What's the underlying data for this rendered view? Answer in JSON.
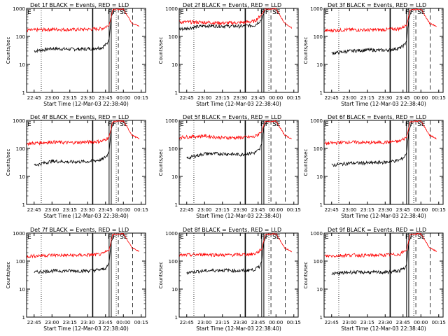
{
  "colors": {
    "events": "#000000",
    "lld": "#ff0000",
    "axis": "#000000"
  },
  "chart_data": [
    {
      "type": "line",
      "title": "Det 1f BLACK = Events, RED = LLD",
      "xlabel": "Start Time (12-Mar-03 22:38:40)",
      "ylabel": "Counts/sec",
      "x_ticks": [
        "22:45",
        "23:00",
        "23:15",
        "23:30",
        "23:45",
        "00:00",
        "00:15"
      ],
      "y_ticks": [
        "1",
        "10",
        "100",
        "1000"
      ],
      "yscale": "log",
      "ylim": [
        1,
        1000
      ],
      "xlim": [
        "22:38:40",
        "00:18:40"
      ],
      "markers": [
        "F",
        "F",
        "SE"
      ],
      "series": [
        {
          "name": "Events",
          "values": [
            [
              22.75,
              30
            ],
            [
              23.0,
              37
            ],
            [
              23.25,
              35
            ],
            [
              23.5,
              36
            ],
            [
              23.7,
              40
            ],
            [
              23.77,
              55
            ],
            [
              23.8,
              80
            ],
            [
              23.83,
              500
            ],
            [
              23.87,
              900
            ]
          ]
        },
        {
          "name": "LLD",
          "values": [
            [
              22.65,
              165
            ],
            [
              23.0,
              180
            ],
            [
              23.25,
              175
            ],
            [
              23.5,
              180
            ],
            [
              23.7,
              190
            ],
            [
              23.8,
              250
            ],
            [
              23.85,
              900
            ],
            [
              24.0,
              950
            ],
            [
              24.12,
              300
            ],
            [
              24.22,
              230
            ]
          ]
        }
      ]
    },
    {
      "type": "line",
      "title": "Det 2f BLACK = Events, RED = LLD",
      "xlabel": "Start Time (12-Mar-03 22:38:40)",
      "ylabel": "Counts/sec",
      "x_ticks": [
        "22:45",
        "23:00",
        "23:15",
        "23:30",
        "23:45",
        "00:00",
        "00:15"
      ],
      "y_ticks": [
        "1",
        "10",
        "100",
        "1000"
      ],
      "yscale": "log",
      "ylim": [
        1,
        1000
      ],
      "xlim": [
        "22:38:40",
        "00:18:40"
      ],
      "markers": [
        "F",
        "F",
        "SE"
      ],
      "series": [
        {
          "name": "Events",
          "values": [
            [
              22.65,
              180
            ],
            [
              23.0,
              240
            ],
            [
              23.25,
              235
            ],
            [
              23.5,
              230
            ],
            [
              23.7,
              250
            ],
            [
              23.8,
              400
            ],
            [
              23.85,
              900
            ]
          ]
        },
        {
          "name": "LLD",
          "values": [
            [
              22.65,
              330
            ],
            [
              23.0,
              320
            ],
            [
              23.25,
              300
            ],
            [
              23.5,
              310
            ],
            [
              23.7,
              350
            ],
            [
              23.8,
              600
            ],
            [
              23.85,
              950
            ],
            [
              24.0,
              960
            ],
            [
              24.12,
              300
            ],
            [
              24.22,
              200
            ]
          ]
        }
      ]
    },
    {
      "type": "line",
      "title": "Det 3f BLACK = Events, RED = LLD",
      "xlabel": "Start Time (12-Mar-03 22:38:40)",
      "ylabel": "Counts/sec",
      "x_ticks": [
        "22:45",
        "23:00",
        "23:15",
        "23:30",
        "23:45",
        "00:00",
        "00:15"
      ],
      "y_ticks": [
        "1",
        "10",
        "100",
        "1000"
      ],
      "yscale": "log",
      "ylim": [
        1,
        1000
      ],
      "xlim": [
        "22:38:40",
        "00:18:40"
      ],
      "markers": [
        "F",
        "F",
        "SE"
      ],
      "series": [
        {
          "name": "Events",
          "values": [
            [
              22.75,
              25
            ],
            [
              23.0,
              30
            ],
            [
              23.25,
              33
            ],
            [
              23.5,
              32
            ],
            [
              23.7,
              38
            ],
            [
              23.77,
              50
            ],
            [
              23.8,
              70
            ],
            [
              23.83,
              400
            ],
            [
              23.87,
              900
            ]
          ]
        },
        {
          "name": "LLD",
          "values": [
            [
              22.65,
              160
            ],
            [
              23.0,
              175
            ],
            [
              23.25,
              170
            ],
            [
              23.5,
              175
            ],
            [
              23.7,
              190
            ],
            [
              23.8,
              250
            ],
            [
              23.85,
              900
            ],
            [
              24.0,
              950
            ],
            [
              24.12,
              300
            ],
            [
              24.22,
              230
            ]
          ]
        }
      ]
    },
    {
      "type": "line",
      "title": "Det 4f BLACK = Events, RED = LLD",
      "xlabel": "Start Time (12-Mar-03 22:38:40)",
      "ylabel": "Counts/sec",
      "x_ticks": [
        "22:45",
        "23:00",
        "23:15",
        "23:30",
        "23:45",
        "00:00",
        "00:15"
      ],
      "y_ticks": [
        "1",
        "10",
        "100",
        "1000"
      ],
      "yscale": "log",
      "ylim": [
        1,
        1000
      ],
      "xlim": [
        "22:38:40",
        "00:18:40"
      ],
      "markers": [
        "F",
        "F",
        "SE"
      ],
      "series": [
        {
          "name": "Events",
          "values": [
            [
              22.75,
              25
            ],
            [
              23.0,
              35
            ],
            [
              23.25,
              33
            ],
            [
              23.5,
              34
            ],
            [
              23.7,
              40
            ],
            [
              23.77,
              55
            ],
            [
              23.8,
              80
            ],
            [
              23.83,
              500
            ],
            [
              23.87,
              900
            ]
          ]
        },
        {
          "name": "LLD",
          "values": [
            [
              22.65,
              150
            ],
            [
              23.0,
              170
            ],
            [
              23.25,
              160
            ],
            [
              23.5,
              170
            ],
            [
              23.7,
              180
            ],
            [
              23.8,
              250
            ],
            [
              23.85,
              900
            ],
            [
              24.0,
              950
            ],
            [
              24.12,
              300
            ],
            [
              24.22,
              220
            ]
          ]
        }
      ]
    },
    {
      "type": "line",
      "title": "Det 5f BLACK = Events, RED = LLD",
      "xlabel": "Start Time (12-Mar-03 22:38:40)",
      "ylabel": "Counts/sec",
      "x_ticks": [
        "22:45",
        "23:00",
        "23:15",
        "23:30",
        "23:45",
        "00:00",
        "00:15"
      ],
      "y_ticks": [
        "1",
        "10",
        "100",
        "1000"
      ],
      "yscale": "log",
      "ylim": [
        1,
        1000
      ],
      "xlim": [
        "22:38:40",
        "00:18:40"
      ],
      "markers": [
        "F",
        "F",
        "SE"
      ],
      "series": [
        {
          "name": "Events",
          "values": [
            [
              22.75,
              45
            ],
            [
              23.0,
              65
            ],
            [
              23.25,
              65
            ],
            [
              23.5,
              60
            ],
            [
              23.7,
              70
            ],
            [
              23.77,
              90
            ],
            [
              23.8,
              150
            ],
            [
              23.83,
              600
            ],
            [
              23.87,
              900
            ]
          ]
        },
        {
          "name": "LLD",
          "values": [
            [
              22.65,
              250
            ],
            [
              23.0,
              280
            ],
            [
              23.25,
              240
            ],
            [
              23.5,
              245
            ],
            [
              23.7,
              260
            ],
            [
              23.8,
              400
            ],
            [
              23.85,
              900
            ],
            [
              24.0,
              950
            ],
            [
              24.12,
              300
            ],
            [
              24.22,
              220
            ]
          ]
        }
      ]
    },
    {
      "type": "line",
      "title": "Det 6f BLACK = Events, RED = LLD",
      "xlabel": "Start Time (12-Mar-03 22:38:40)",
      "ylabel": "Counts/sec",
      "x_ticks": [
        "22:45",
        "23:00",
        "23:15",
        "23:30",
        "23:45",
        "00:00",
        "00:15"
      ],
      "y_ticks": [
        "1",
        "10",
        "100",
        "1000"
      ],
      "yscale": "log",
      "ylim": [
        1,
        1000
      ],
      "xlim": [
        "22:38:40",
        "00:18:40"
      ],
      "markers": [
        "F",
        "F",
        "SE"
      ],
      "series": [
        {
          "name": "Events",
          "values": [
            [
              22.75,
              25
            ],
            [
              23.0,
              30
            ],
            [
              23.25,
              30
            ],
            [
              23.5,
              32
            ],
            [
              23.7,
              38
            ],
            [
              23.77,
              50
            ],
            [
              23.8,
              70
            ],
            [
              23.83,
              400
            ],
            [
              23.87,
              900
            ]
          ]
        },
        {
          "name": "LLD",
          "values": [
            [
              22.65,
              150
            ],
            [
              23.0,
              170
            ],
            [
              23.25,
              160
            ],
            [
              23.5,
              165
            ],
            [
              23.7,
              180
            ],
            [
              23.8,
              250
            ],
            [
              23.85,
              900
            ],
            [
              24.0,
              950
            ],
            [
              24.12,
              300
            ],
            [
              24.22,
              220
            ]
          ]
        }
      ]
    },
    {
      "type": "line",
      "title": "Det 7f BLACK = Events, RED = LLD",
      "xlabel": "Start Time (12-Mar-03 22:38:40)",
      "ylabel": "Counts/sec",
      "x_ticks": [
        "22:45",
        "23:00",
        "23:15",
        "23:30",
        "23:45",
        "00:00",
        "00:15"
      ],
      "y_ticks": [
        "1",
        "10",
        "100",
        "1000"
      ],
      "yscale": "log",
      "ylim": [
        1,
        1000
      ],
      "xlim": [
        "22:38:40",
        "00:18:40"
      ],
      "markers": [
        "F",
        "F",
        "SE"
      ],
      "series": [
        {
          "name": "Events",
          "values": [
            [
              22.75,
              40
            ],
            [
              23.0,
              45
            ],
            [
              23.25,
              45
            ],
            [
              23.5,
              45
            ],
            [
              23.7,
              50
            ],
            [
              23.77,
              60
            ],
            [
              23.8,
              90
            ],
            [
              23.83,
              500
            ],
            [
              23.87,
              900
            ]
          ]
        },
        {
          "name": "LLD",
          "values": [
            [
              22.65,
              150
            ],
            [
              23.0,
              165
            ],
            [
              23.25,
              160
            ],
            [
              23.5,
              165
            ],
            [
              23.7,
              175
            ],
            [
              23.8,
              250
            ],
            [
              23.85,
              900
            ],
            [
              24.0,
              950
            ],
            [
              24.12,
              300
            ],
            [
              24.22,
              220
            ]
          ]
        }
      ]
    },
    {
      "type": "line",
      "title": "Det 8f BLACK = Events, RED = LLD",
      "xlabel": "Start Time (12-Mar-03 22:38:40)",
      "ylabel": "Counts/sec",
      "x_ticks": [
        "22:45",
        "23:00",
        "23:15",
        "23:30",
        "23:45",
        "00:00",
        "00:15"
      ],
      "y_ticks": [
        "1",
        "10",
        "100",
        "1000"
      ],
      "yscale": "log",
      "ylim": [
        1,
        1000
      ],
      "xlim": [
        "22:38:40",
        "00:18:40"
      ],
      "markers": [
        "F",
        "F",
        "SE"
      ],
      "series": [
        {
          "name": "Events",
          "values": [
            [
              22.75,
              40
            ],
            [
              23.0,
              45
            ],
            [
              23.25,
              48
            ],
            [
              23.5,
              45
            ],
            [
              23.7,
              50
            ],
            [
              23.77,
              65
            ],
            [
              23.8,
              100
            ],
            [
              23.83,
              500
            ],
            [
              23.87,
              900
            ]
          ]
        },
        {
          "name": "LLD",
          "values": [
            [
              22.65,
              160
            ],
            [
              23.0,
              175
            ],
            [
              23.25,
              165
            ],
            [
              23.5,
              170
            ],
            [
              23.7,
              180
            ],
            [
              23.8,
              260
            ],
            [
              23.85,
              900
            ],
            [
              24.0,
              950
            ],
            [
              24.12,
              300
            ],
            [
              24.22,
              220
            ]
          ]
        }
      ]
    },
    {
      "type": "line",
      "title": "Det 9f BLACK = Events, RED = LLD",
      "xlabel": "Start Time (12-Mar-03 22:38:40)",
      "ylabel": "Counts/sec",
      "x_ticks": [
        "22:45",
        "23:00",
        "23:15",
        "23:30",
        "23:45",
        "00:00",
        "00:15"
      ],
      "y_ticks": [
        "1",
        "10",
        "100",
        "1000"
      ],
      "yscale": "log",
      "ylim": [
        1,
        1000
      ],
      "xlim": [
        "22:38:40",
        "00:18:40"
      ],
      "markers": [
        "F",
        "F",
        "SE"
      ],
      "series": [
        {
          "name": "Events",
          "values": [
            [
              22.75,
              35
            ],
            [
              23.0,
              40
            ],
            [
              23.25,
              40
            ],
            [
              23.5,
              40
            ],
            [
              23.7,
              45
            ],
            [
              23.77,
              55
            ],
            [
              23.8,
              80
            ],
            [
              23.83,
              450
            ],
            [
              23.87,
              900
            ]
          ]
        },
        {
          "name": "LLD",
          "values": [
            [
              22.65,
              150
            ],
            [
              23.0,
              165
            ],
            [
              23.25,
              160
            ],
            [
              23.5,
              165
            ],
            [
              23.7,
              175
            ],
            [
              23.8,
              250
            ],
            [
              23.85,
              900
            ],
            [
              24.0,
              950
            ],
            [
              24.12,
              300
            ],
            [
              24.22,
              220
            ]
          ]
        }
      ]
    }
  ]
}
